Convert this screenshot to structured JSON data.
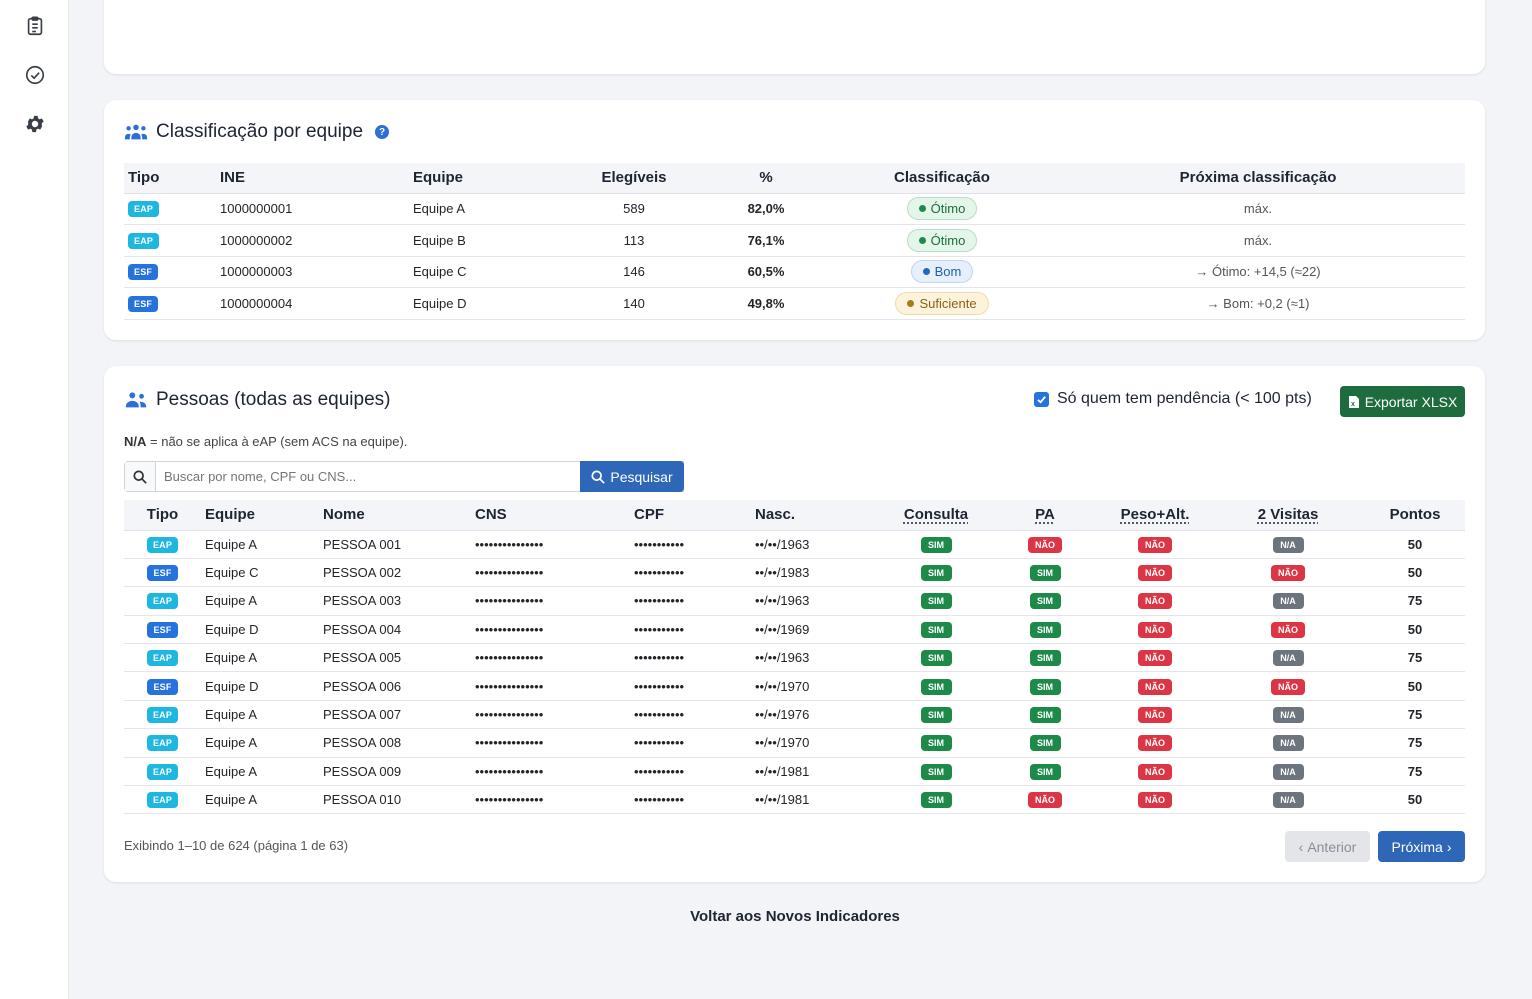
{
  "sidebar": {
    "icons": [
      "clipboard-list-icon",
      "check-circle-icon",
      "gear-icon"
    ]
  },
  "classification": {
    "title": "Classificação por equipe",
    "help": "?",
    "headers": [
      "Tipo",
      "INE",
      "Equipe",
      "Elegíveis",
      "%",
      "Classificação",
      "Próxima classificação"
    ],
    "rows": [
      {
        "tipo": "EAP",
        "ine": "1000000001",
        "equipe": "Equipe A",
        "elegiveis": "589",
        "pct": "82,0%",
        "class": "Ótimo",
        "next": "máx."
      },
      {
        "tipo": "EAP",
        "ine": "1000000002",
        "equipe": "Equipe B",
        "elegiveis": "113",
        "pct": "76,1%",
        "class": "Ótimo",
        "next": "máx."
      },
      {
        "tipo": "ESF",
        "ine": "1000000003",
        "equipe": "Equipe C",
        "elegiveis": "146",
        "pct": "60,5%",
        "class": "Bom",
        "next": "→ Ótimo: +14,5 (≈22)"
      },
      {
        "tipo": "ESF",
        "ine": "1000000004",
        "equipe": "Equipe D",
        "elegiveis": "140",
        "pct": "49,8%",
        "class": "Suficiente",
        "next": "→ Bom: +0,2 (≈1)"
      }
    ]
  },
  "people": {
    "title": "Pessoas (todas as equipes)",
    "filter_label": "Só quem tem pendência (< 100 pts)",
    "export_label": "Exportar XLSX",
    "note_key": "N/A",
    "note_text": "= não se aplica à eAP (sem ACS na equipe).",
    "search_placeholder": "Buscar por nome, CPF ou CNS...",
    "search_label": "Pesquisar",
    "headers": [
      "Tipo",
      "Equipe",
      "Nome",
      "CNS",
      "CPF",
      "Nasc.",
      "Consulta",
      "PA",
      "Peso+Alt.",
      "2 Visitas",
      "Pontos"
    ],
    "rows": [
      {
        "tipo": "EAP",
        "equipe": "Equipe A",
        "nome": "PESSOA 001",
        "cns": "•••••••••••••••",
        "cpf": "•••••••••••",
        "nasc": "••/••/1963",
        "consulta": "SIM",
        "pa": "NÃO",
        "peso": "NÃO",
        "visitas": "N/A",
        "pontos": "50"
      },
      {
        "tipo": "ESF",
        "equipe": "Equipe C",
        "nome": "PESSOA 002",
        "cns": "•••••••••••••••",
        "cpf": "•••••••••••",
        "nasc": "••/••/1983",
        "consulta": "SIM",
        "pa": "SIM",
        "peso": "NÃO",
        "visitas": "NÃO",
        "pontos": "50"
      },
      {
        "tipo": "EAP",
        "equipe": "Equipe A",
        "nome": "PESSOA 003",
        "cns": "•••••••••••••••",
        "cpf": "•••••••••••",
        "nasc": "••/••/1963",
        "consulta": "SIM",
        "pa": "SIM",
        "peso": "NÃO",
        "visitas": "N/A",
        "pontos": "75"
      },
      {
        "tipo": "ESF",
        "equipe": "Equipe D",
        "nome": "PESSOA 004",
        "cns": "•••••••••••••••",
        "cpf": "•••••••••••",
        "nasc": "••/••/1969",
        "consulta": "SIM",
        "pa": "SIM",
        "peso": "NÃO",
        "visitas": "NÃO",
        "pontos": "50"
      },
      {
        "tipo": "EAP",
        "equipe": "Equipe A",
        "nome": "PESSOA 005",
        "cns": "•••••••••••••••",
        "cpf": "•••••••••••",
        "nasc": "••/••/1963",
        "consulta": "SIM",
        "pa": "SIM",
        "peso": "NÃO",
        "visitas": "N/A",
        "pontos": "75"
      },
      {
        "tipo": "ESF",
        "equipe": "Equipe D",
        "nome": "PESSOA 006",
        "cns": "•••••••••••••••",
        "cpf": "•••••••••••",
        "nasc": "••/••/1970",
        "consulta": "SIM",
        "pa": "SIM",
        "peso": "NÃO",
        "visitas": "NÃO",
        "pontos": "50"
      },
      {
        "tipo": "EAP",
        "equipe": "Equipe A",
        "nome": "PESSOA 007",
        "cns": "•••••••••••••••",
        "cpf": "•••••••••••",
        "nasc": "••/••/1976",
        "consulta": "SIM",
        "pa": "SIM",
        "peso": "NÃO",
        "visitas": "N/A",
        "pontos": "75"
      },
      {
        "tipo": "EAP",
        "equipe": "Equipe A",
        "nome": "PESSOA 008",
        "cns": "•••••••••••••••",
        "cpf": "•••••••••••",
        "nasc": "••/••/1970",
        "consulta": "SIM",
        "pa": "SIM",
        "peso": "NÃO",
        "visitas": "N/A",
        "pontos": "75"
      },
      {
        "tipo": "EAP",
        "equipe": "Equipe A",
        "nome": "PESSOA 009",
        "cns": "•••••••••••••••",
        "cpf": "•••••••••••",
        "nasc": "••/••/1981",
        "consulta": "SIM",
        "pa": "SIM",
        "peso": "NÃO",
        "visitas": "N/A",
        "pontos": "75"
      },
      {
        "tipo": "EAP",
        "equipe": "Equipe A",
        "nome": "PESSOA 010",
        "cns": "•••••••••••••••",
        "cpf": "•••••••••••",
        "nasc": "••/••/1981",
        "consulta": "SIM",
        "pa": "NÃO",
        "peso": "NÃO",
        "visitas": "N/A",
        "pontos": "50"
      }
    ],
    "pagination_info": "Exibindo 1–10 de 624 (página 1 de 63)",
    "prev_label": "Anterior",
    "next_label": "Próxima"
  },
  "back_link": "Voltar aos Novos Indicadores",
  "colors": {
    "accent": "#2f67b8",
    "success": "#1d8a4a",
    "danger": "#dc3545",
    "neutral": "#6c757d",
    "export": "#1e6b3d"
  }
}
